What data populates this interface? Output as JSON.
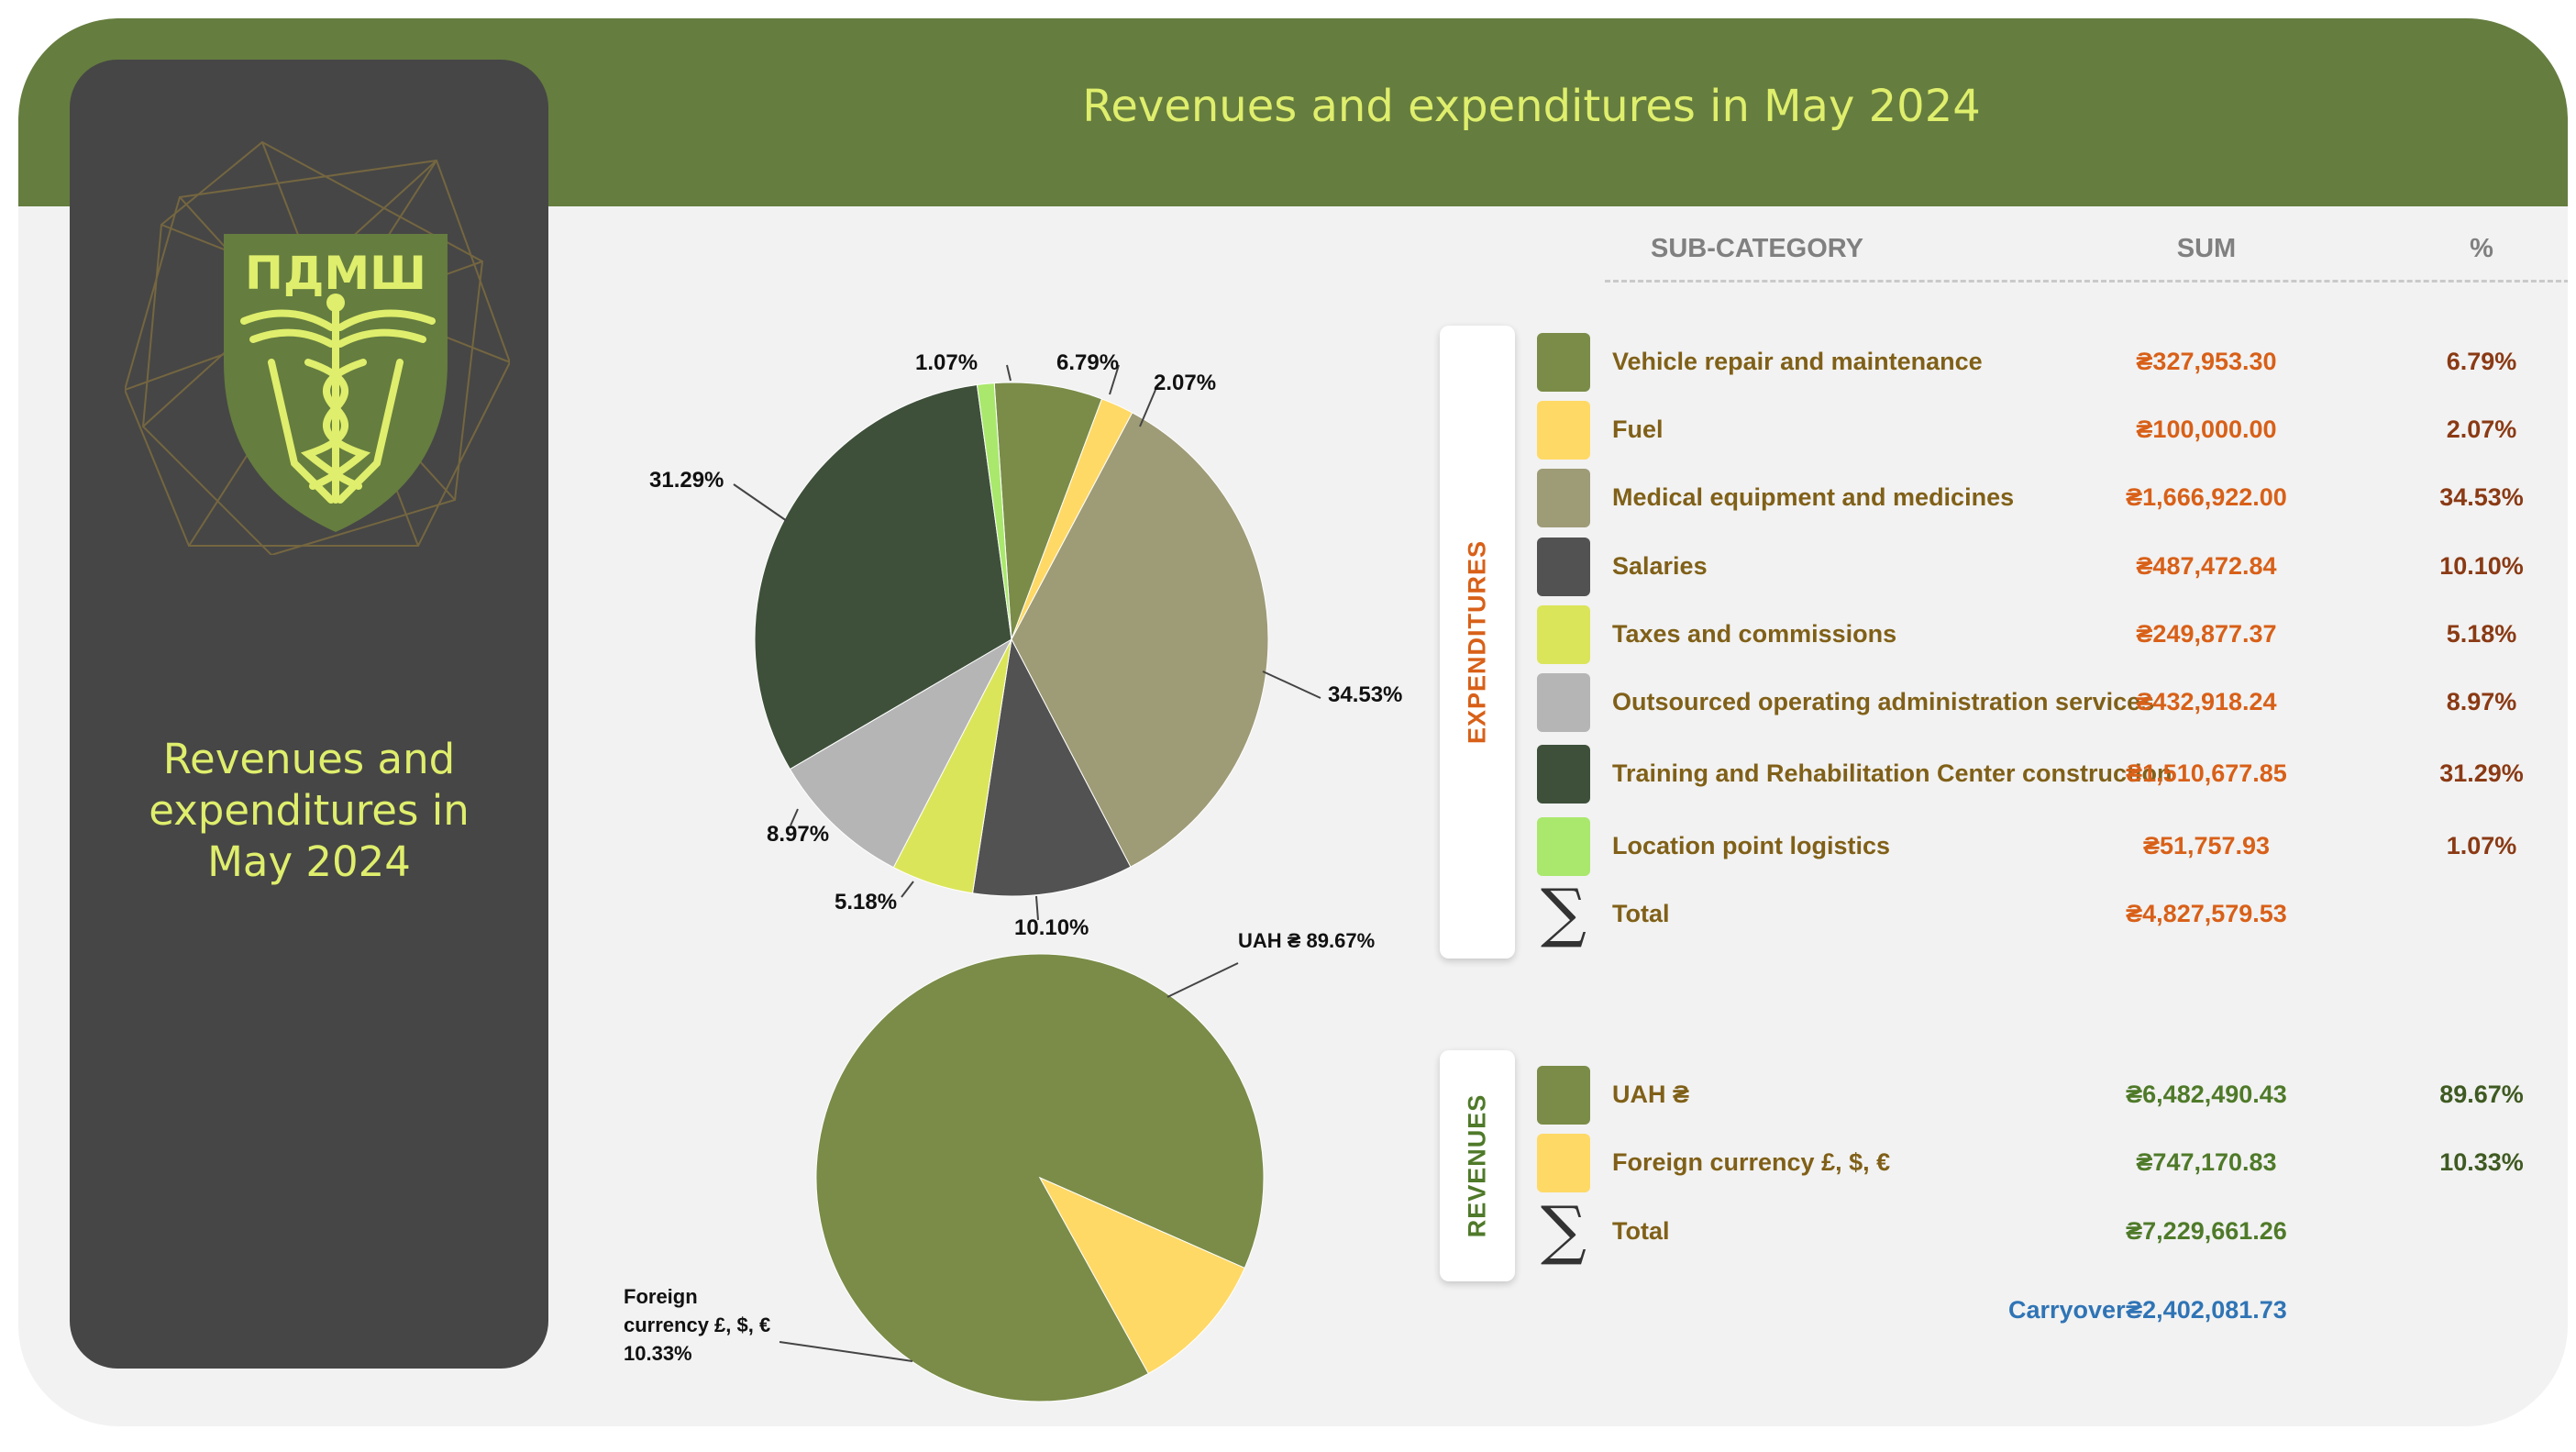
{
  "header": {
    "title": "Revenues and expenditures in May 2024"
  },
  "sidebar": {
    "title_lines": [
      "Revenues and",
      "expenditures in",
      "May 2024"
    ],
    "logo_text": "ПДМШ"
  },
  "table": {
    "col_subcategory": "SUB-CATEGORY",
    "col_sum": "SUM",
    "col_pct": "%",
    "expenditures_label": "EXPENDITURES",
    "revenues_label": "REVENUES",
    "carryover_label": "Carryover",
    "carryover_value": "₴2,402,081.73"
  },
  "colors": {
    "header": "#657d3f",
    "accent_text": "#dfee6c",
    "expenditures_sum": "#d86018",
    "revenues_sum": "#4f7a29",
    "carryover": "#2f74b5"
  },
  "chart_data": [
    {
      "type": "pie",
      "name": "EXPENDITURES",
      "categories": [
        "Vehicle repair and maintenance",
        "Fuel",
        "Medical equipment and medicines",
        "Salaries",
        "Taxes and commissions",
        "Outsourced operating administration services",
        "Training and Rehabilitation Center construction",
        "Location point logistics"
      ],
      "values": [
        327953.3,
        100000.0,
        1666922.0,
        487472.84,
        249877.37,
        432918.24,
        1510677.85,
        51757.93
      ],
      "sums": [
        "₴327,953.30",
        "₴100,000.00",
        "₴1,666,922.00",
        "₴487,472.84",
        "₴249,877.37",
        "₴432,918.24",
        "₴1,510,677.85",
        "₴51,757.93"
      ],
      "percents": [
        "6.79%",
        "2.07%",
        "34.53%",
        "10.10%",
        "5.18%",
        "8.97%",
        "31.29%",
        "1.07%"
      ],
      "percent_values": [
        6.79,
        2.07,
        34.53,
        10.1,
        5.18,
        8.97,
        31.29,
        1.07
      ],
      "colors": [
        "#7a8c48",
        "#ffd966",
        "#9e9b77",
        "#525252",
        "#dbe55a",
        "#b5b5b5",
        "#3e503a",
        "#a9e86c"
      ],
      "total_label": "Total",
      "total": "₴4,827,579.53"
    },
    {
      "type": "pie",
      "name": "REVENUES",
      "categories": [
        "UAH ₴",
        "Foreign currency £, $, €"
      ],
      "values": [
        6482490.43,
        747170.83
      ],
      "sums": [
        "₴6,482,490.43",
        "₴747,170.83"
      ],
      "percents": [
        "89.67%",
        "10.33%"
      ],
      "percent_values": [
        89.67,
        10.33
      ],
      "colors": [
        "#7a8c48",
        "#ffd966"
      ],
      "slice_labels": [
        [
          "UAH ₴ 89.67%"
        ],
        [
          "Foreign",
          "currency £, $, €",
          "10.33%"
        ]
      ],
      "total_label": "Total",
      "total": "₴7,229,661.26"
    }
  ]
}
